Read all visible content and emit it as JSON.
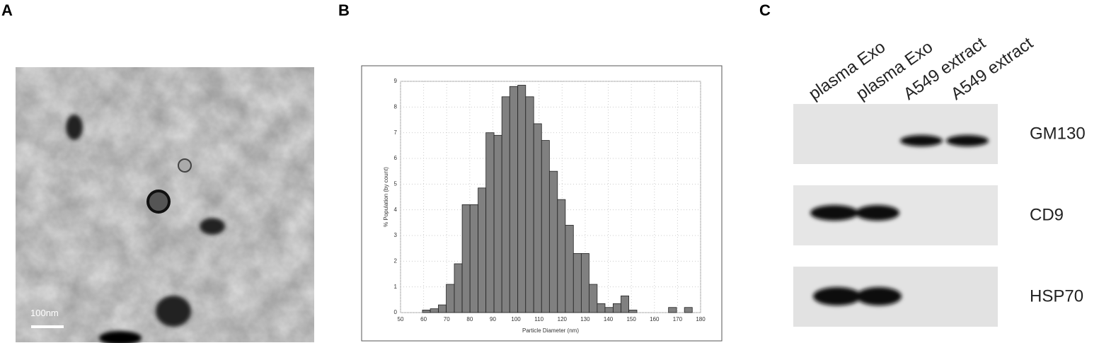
{
  "panels": [
    "A",
    "B",
    "C"
  ],
  "scale_bar": "100nm",
  "chart_data": {
    "type": "histogram",
    "xlabel": "Particle Diameter (nm)",
    "ylabel": "% Population (by count)",
    "bins": [
      59.5,
      62.9,
      66.4,
      69.8,
      73.3,
      76.7,
      80.1,
      83.6,
      87.0,
      90.5,
      93.9,
      97.3,
      100.8,
      104.2,
      107.7,
      111.1,
      114.5,
      118.0,
      121.4,
      124.9,
      128.3,
      131.7,
      135.2,
      138.6,
      142.1,
      145.5,
      148.9,
      152.4,
      155.8,
      159.3,
      162.7,
      166.1,
      169.6,
      173.0,
      176.4
    ],
    "values": [
      0.1,
      0.15,
      0.3,
      1.1,
      1.9,
      4.2,
      4.2,
      4.85,
      7.0,
      6.9,
      8.4,
      8.8,
      8.85,
      8.4,
      7.35,
      6.7,
      5.5,
      4.4,
      3.4,
      2.3,
      2.3,
      1.1,
      0.35,
      0.2,
      0.35,
      0.65,
      0.1,
      0,
      0,
      0,
      0,
      0.2,
      0,
      0.2
    ],
    "color": "#808080",
    "xlim": [
      50,
      180
    ],
    "xticks": [
      50,
      60,
      70,
      80,
      90,
      100,
      110,
      120,
      130,
      140,
      150,
      160,
      170,
      180
    ],
    "ylim": [
      0,
      9
    ],
    "yticks": [
      0,
      1,
      2,
      3,
      4,
      5,
      6,
      7,
      8,
      9
    ],
    "grid": true
  },
  "blot": {
    "lanes": [
      "plasma Exo",
      "plasma Exo",
      "A549 extract",
      "A549 extract"
    ],
    "proteins": [
      "GM130",
      "CD9",
      "HSP70"
    ]
  }
}
